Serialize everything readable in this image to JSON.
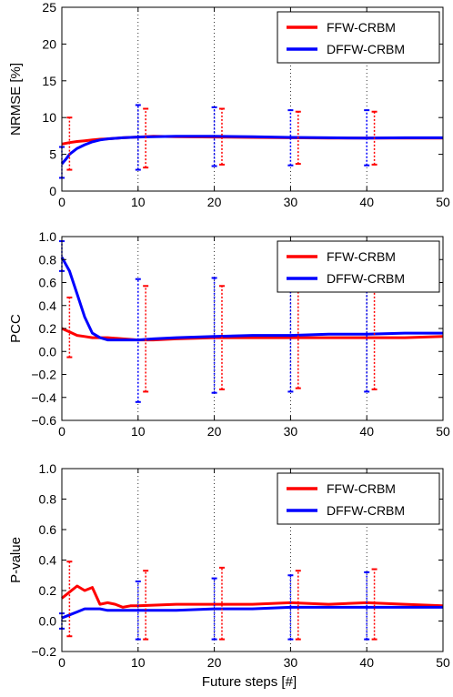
{
  "chart_data": [
    {
      "type": "line",
      "ylabel": "NRMSE [%]",
      "xlabel": "",
      "xlim": [
        0,
        50
      ],
      "ylim": [
        0,
        25
      ],
      "xticks": [
        0,
        10,
        20,
        30,
        40,
        50
      ],
      "yticks": [
        0,
        5,
        10,
        15,
        20,
        25
      ],
      "grid": "x-only dotted",
      "legend_position": "top-right",
      "series": [
        {
          "name": "FFW-CRBM",
          "color": "#ff0000",
          "x": [
            0,
            1,
            2,
            3,
            4,
            5,
            6,
            8,
            10,
            12,
            15,
            20,
            25,
            30,
            35,
            40,
            45,
            50
          ],
          "values": [
            6.4,
            6.6,
            6.75,
            6.85,
            6.95,
            7.05,
            7.1,
            7.25,
            7.35,
            7.45,
            7.4,
            7.35,
            7.3,
            7.25,
            7.2,
            7.2,
            7.2,
            7.2
          ],
          "error_bars": [
            {
              "x": 1,
              "low": 2.9,
              "high": 10.0
            },
            {
              "x": 11,
              "low": 3.2,
              "high": 11.2
            },
            {
              "x": 21,
              "low": 3.6,
              "high": 11.2
            },
            {
              "x": 31,
              "low": 3.7,
              "high": 10.8
            },
            {
              "x": 41,
              "low": 3.6,
              "high": 10.8
            }
          ]
        },
        {
          "name": "DFFW-CRBM",
          "color": "#0000ff",
          "x": [
            0,
            0.5,
            1,
            2,
            3,
            4,
            5,
            6,
            8,
            10,
            12,
            15,
            20,
            25,
            30,
            35,
            40,
            45,
            50
          ],
          "values": [
            3.7,
            4.3,
            5.0,
            5.8,
            6.3,
            6.7,
            6.95,
            7.1,
            7.25,
            7.35,
            7.4,
            7.45,
            7.45,
            7.4,
            7.3,
            7.25,
            7.2,
            7.25,
            7.25
          ],
          "error_bars": [
            {
              "x": 0,
              "low": 1.8,
              "high": 6.0
            },
            {
              "x": 10,
              "low": 2.9,
              "high": 11.7
            },
            {
              "x": 20,
              "low": 3.4,
              "high": 11.4
            },
            {
              "x": 30,
              "low": 3.5,
              "high": 11.0
            },
            {
              "x": 40,
              "low": 3.5,
              "high": 11.0
            }
          ]
        }
      ]
    },
    {
      "type": "line",
      "ylabel": "PCC",
      "xlabel": "",
      "xlim": [
        0,
        50
      ],
      "ylim": [
        -0.6,
        1.0
      ],
      "xticks": [
        0,
        10,
        20,
        30,
        40,
        50
      ],
      "yticks": [
        -0.6,
        -0.4,
        -0.2,
        0.0,
        0.2,
        0.4,
        0.6,
        0.8,
        1.0
      ],
      "grid": "x-only dotted",
      "legend_position": "top-right",
      "series": [
        {
          "name": "FFW-CRBM",
          "color": "#ff0000",
          "x": [
            0,
            1,
            2,
            3,
            4,
            5,
            6,
            8,
            10,
            12,
            15,
            20,
            25,
            30,
            35,
            40,
            45,
            50
          ],
          "values": [
            0.2,
            0.17,
            0.14,
            0.13,
            0.12,
            0.12,
            0.12,
            0.11,
            0.1,
            0.1,
            0.11,
            0.12,
            0.12,
            0.12,
            0.12,
            0.12,
            0.12,
            0.13
          ],
          "error_bars": [
            {
              "x": 1,
              "low": -0.05,
              "high": 0.47
            },
            {
              "x": 11,
              "low": -0.35,
              "high": 0.57
            },
            {
              "x": 21,
              "low": -0.33,
              "high": 0.57
            },
            {
              "x": 31,
              "low": -0.32,
              "high": 0.57
            },
            {
              "x": 41,
              "low": -0.33,
              "high": 0.57
            }
          ]
        },
        {
          "name": "DFFW-CRBM",
          "color": "#0000ff",
          "x": [
            0,
            1,
            2,
            3,
            4,
            5,
            6,
            7,
            8,
            10,
            12,
            15,
            20,
            25,
            30,
            35,
            40,
            45,
            50
          ],
          "values": [
            0.82,
            0.7,
            0.5,
            0.3,
            0.16,
            0.12,
            0.1,
            0.1,
            0.1,
            0.1,
            0.11,
            0.12,
            0.13,
            0.14,
            0.14,
            0.15,
            0.15,
            0.16,
            0.16
          ],
          "error_bars": [
            {
              "x": 0,
              "low": 0.7,
              "high": 0.96
            },
            {
              "x": 10,
              "low": -0.44,
              "high": 0.63
            },
            {
              "x": 20,
              "low": -0.36,
              "high": 0.64
            },
            {
              "x": 30,
              "low": -0.35,
              "high": 0.62
            },
            {
              "x": 40,
              "low": -0.35,
              "high": 0.62
            }
          ]
        }
      ]
    },
    {
      "type": "line",
      "ylabel": "P-value",
      "xlabel": "Future steps [#]",
      "xlim": [
        0,
        50
      ],
      "ylim": [
        -0.2,
        1.0
      ],
      "xticks": [
        0,
        10,
        20,
        30,
        40,
        50
      ],
      "yticks": [
        -0.2,
        0.0,
        0.2,
        0.4,
        0.6,
        0.8,
        1.0
      ],
      "grid": "x-only dotted",
      "legend_position": "top-right",
      "series": [
        {
          "name": "FFW-CRBM",
          "color": "#ff0000",
          "x": [
            0,
            1,
            2,
            3,
            4,
            5,
            6,
            7,
            8,
            9,
            10,
            15,
            20,
            25,
            30,
            35,
            40,
            45,
            50
          ],
          "values": [
            0.15,
            0.19,
            0.23,
            0.2,
            0.22,
            0.11,
            0.12,
            0.11,
            0.09,
            0.1,
            0.1,
            0.11,
            0.11,
            0.11,
            0.12,
            0.11,
            0.12,
            0.11,
            0.1
          ],
          "error_bars": [
            {
              "x": 1,
              "low": -0.1,
              "high": 0.39
            },
            {
              "x": 11,
              "low": -0.12,
              "high": 0.33
            },
            {
              "x": 21,
              "low": -0.12,
              "high": 0.35
            },
            {
              "x": 31,
              "low": -0.12,
              "high": 0.33
            },
            {
              "x": 41,
              "low": -0.12,
              "high": 0.34
            }
          ]
        },
        {
          "name": "DFFW-CRBM",
          "color": "#0000ff",
          "x": [
            0,
            1,
            2,
            3,
            4,
            5,
            6,
            8,
            10,
            15,
            20,
            25,
            30,
            35,
            40,
            45,
            50
          ],
          "values": [
            0.02,
            0.04,
            0.06,
            0.08,
            0.08,
            0.08,
            0.07,
            0.07,
            0.07,
            0.07,
            0.08,
            0.08,
            0.09,
            0.09,
            0.09,
            0.09,
            0.09
          ],
          "error_bars": [
            {
              "x": 0,
              "low": -0.05,
              "high": 0.05
            },
            {
              "x": 10,
              "low": -0.12,
              "high": 0.26
            },
            {
              "x": 20,
              "low": -0.12,
              "high": 0.28
            },
            {
              "x": 30,
              "low": -0.12,
              "high": 0.3
            },
            {
              "x": 40,
              "low": -0.12,
              "high": 0.32
            }
          ]
        }
      ]
    }
  ]
}
